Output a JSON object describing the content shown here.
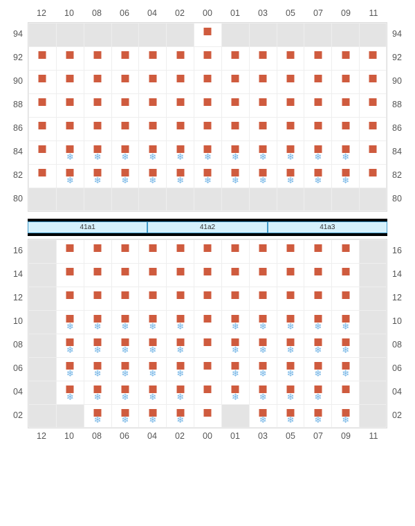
{
  "colors": {
    "seat": "#cf5b3e",
    "snow": "#72b4e6",
    "blank_cell": "#e4e4e4",
    "cell_border": "#eeeeee",
    "section_border": "#dddddd",
    "tray_bg": "#d6f1fc",
    "tray_border": "#3f99c9",
    "label_color": "#555555"
  },
  "columns": [
    "12",
    "10",
    "08",
    "06",
    "04",
    "02",
    "00",
    "01",
    "03",
    "05",
    "07",
    "09",
    "11"
  ],
  "trays": [
    "41a1",
    "41a2",
    "41a3"
  ],
  "upper": {
    "row_labels": [
      "94",
      "92",
      "90",
      "88",
      "86",
      "84",
      "82",
      "80"
    ],
    "rows": [
      [
        {
          "blank": true
        },
        {
          "blank": true
        },
        {
          "blank": true
        },
        {
          "blank": true
        },
        {
          "blank": true
        },
        {
          "blank": true
        },
        {
          "seat": true
        },
        {
          "blank": true
        },
        {
          "blank": true
        },
        {
          "blank": true
        },
        {
          "blank": true
        },
        {
          "blank": true
        },
        {
          "blank": true
        }
      ],
      [
        {
          "seat": true
        },
        {
          "seat": true
        },
        {
          "seat": true
        },
        {
          "seat": true
        },
        {
          "seat": true
        },
        {
          "seat": true
        },
        {
          "seat": true
        },
        {
          "seat": true
        },
        {
          "seat": true
        },
        {
          "seat": true
        },
        {
          "seat": true
        },
        {
          "seat": true
        },
        {
          "seat": true
        }
      ],
      [
        {
          "seat": true
        },
        {
          "seat": true
        },
        {
          "seat": true
        },
        {
          "seat": true
        },
        {
          "seat": true
        },
        {
          "seat": true
        },
        {
          "seat": true
        },
        {
          "seat": true
        },
        {
          "seat": true
        },
        {
          "seat": true
        },
        {
          "seat": true
        },
        {
          "seat": true
        },
        {
          "seat": true
        }
      ],
      [
        {
          "seat": true
        },
        {
          "seat": true
        },
        {
          "seat": true
        },
        {
          "seat": true
        },
        {
          "seat": true
        },
        {
          "seat": true
        },
        {
          "seat": true
        },
        {
          "seat": true
        },
        {
          "seat": true
        },
        {
          "seat": true
        },
        {
          "seat": true
        },
        {
          "seat": true
        },
        {
          "seat": true
        }
      ],
      [
        {
          "seat": true
        },
        {
          "seat": true
        },
        {
          "seat": true
        },
        {
          "seat": true
        },
        {
          "seat": true
        },
        {
          "seat": true
        },
        {
          "seat": true
        },
        {
          "seat": true
        },
        {
          "seat": true
        },
        {
          "seat": true
        },
        {
          "seat": true
        },
        {
          "seat": true
        },
        {
          "seat": true
        }
      ],
      [
        {
          "seat": true
        },
        {
          "seat": true,
          "snow": true
        },
        {
          "seat": true,
          "snow": true
        },
        {
          "seat": true,
          "snow": true
        },
        {
          "seat": true,
          "snow": true
        },
        {
          "seat": true,
          "snow": true
        },
        {
          "seat": true,
          "snow": true
        },
        {
          "seat": true,
          "snow": true
        },
        {
          "seat": true,
          "snow": true
        },
        {
          "seat": true,
          "snow": true
        },
        {
          "seat": true,
          "snow": true
        },
        {
          "seat": true,
          "snow": true
        },
        {
          "seat": true
        }
      ],
      [
        {
          "seat": true
        },
        {
          "seat": true,
          "snow": true
        },
        {
          "seat": true,
          "snow": true
        },
        {
          "seat": true,
          "snow": true
        },
        {
          "seat": true,
          "snow": true
        },
        {
          "seat": true,
          "snow": true
        },
        {
          "seat": true,
          "snow": true
        },
        {
          "seat": true,
          "snow": true
        },
        {
          "seat": true,
          "snow": true
        },
        {
          "seat": true,
          "snow": true
        },
        {
          "seat": true,
          "snow": true
        },
        {
          "seat": true,
          "snow": true
        },
        {
          "seat": true
        }
      ],
      [
        {
          "blank": true
        },
        {
          "blank": true
        },
        {
          "blank": true
        },
        {
          "blank": true
        },
        {
          "blank": true
        },
        {
          "blank": true
        },
        {
          "blank": true
        },
        {
          "blank": true
        },
        {
          "blank": true
        },
        {
          "blank": true
        },
        {
          "blank": true
        },
        {
          "blank": true
        },
        {
          "blank": true
        }
      ]
    ]
  },
  "lower": {
    "row_labels": [
      "16",
      "14",
      "12",
      "10",
      "08",
      "06",
      "04",
      "02"
    ],
    "rows": [
      [
        {
          "blank": true
        },
        {
          "seat": true
        },
        {
          "seat": true
        },
        {
          "seat": true
        },
        {
          "seat": true
        },
        {
          "seat": true
        },
        {
          "seat": true
        },
        {
          "seat": true
        },
        {
          "seat": true
        },
        {
          "seat": true
        },
        {
          "seat": true
        },
        {
          "seat": true
        },
        {
          "blank": true
        }
      ],
      [
        {
          "blank": true
        },
        {
          "seat": true
        },
        {
          "seat": true
        },
        {
          "seat": true
        },
        {
          "seat": true
        },
        {
          "seat": true
        },
        {
          "seat": true
        },
        {
          "seat": true
        },
        {
          "seat": true
        },
        {
          "seat": true
        },
        {
          "seat": true
        },
        {
          "seat": true
        },
        {
          "blank": true
        }
      ],
      [
        {
          "blank": true
        },
        {
          "seat": true
        },
        {
          "seat": true
        },
        {
          "seat": true
        },
        {
          "seat": true
        },
        {
          "seat": true
        },
        {
          "seat": true
        },
        {
          "seat": true
        },
        {
          "seat": true
        },
        {
          "seat": true
        },
        {
          "seat": true
        },
        {
          "seat": true
        },
        {
          "blank": true
        }
      ],
      [
        {
          "blank": true
        },
        {
          "seat": true,
          "snow": true
        },
        {
          "seat": true,
          "snow": true
        },
        {
          "seat": true,
          "snow": true
        },
        {
          "seat": true,
          "snow": true
        },
        {
          "seat": true,
          "snow": true
        },
        {
          "seat": true
        },
        {
          "seat": true,
          "snow": true
        },
        {
          "seat": true,
          "snow": true
        },
        {
          "seat": true,
          "snow": true
        },
        {
          "seat": true,
          "snow": true
        },
        {
          "seat": true,
          "snow": true
        },
        {
          "blank": true
        }
      ],
      [
        {
          "blank": true
        },
        {
          "seat": true,
          "snow": true
        },
        {
          "seat": true,
          "snow": true
        },
        {
          "seat": true,
          "snow": true
        },
        {
          "seat": true,
          "snow": true
        },
        {
          "seat": true,
          "snow": true
        },
        {
          "seat": true
        },
        {
          "seat": true,
          "snow": true
        },
        {
          "seat": true,
          "snow": true
        },
        {
          "seat": true,
          "snow": true
        },
        {
          "seat": true,
          "snow": true
        },
        {
          "seat": true,
          "snow": true
        },
        {
          "blank": true
        }
      ],
      [
        {
          "blank": true
        },
        {
          "seat": true,
          "snow": true
        },
        {
          "seat": true,
          "snow": true
        },
        {
          "seat": true,
          "snow": true
        },
        {
          "seat": true,
          "snow": true
        },
        {
          "seat": true,
          "snow": true
        },
        {
          "seat": true
        },
        {
          "seat": true,
          "snow": true
        },
        {
          "seat": true,
          "snow": true
        },
        {
          "seat": true,
          "snow": true
        },
        {
          "seat": true,
          "snow": true
        },
        {
          "seat": true,
          "snow": true
        },
        {
          "blank": true
        }
      ],
      [
        {
          "blank": true
        },
        {
          "seat": true,
          "snow": true
        },
        {
          "seat": true,
          "snow": true
        },
        {
          "seat": true,
          "snow": true
        },
        {
          "seat": true,
          "snow": true
        },
        {
          "seat": true,
          "snow": true
        },
        {
          "seat": true
        },
        {
          "seat": true,
          "snow": true
        },
        {
          "seat": true,
          "snow": true
        },
        {
          "seat": true,
          "snow": true
        },
        {
          "seat": true,
          "snow": true
        },
        {
          "seat": true
        },
        {
          "blank": true
        }
      ],
      [
        {
          "blank": true
        },
        {
          "blank": true
        },
        {
          "seat": true,
          "snow": true
        },
        {
          "seat": true,
          "snow": true
        },
        {
          "seat": true,
          "snow": true
        },
        {
          "seat": true,
          "snow": true
        },
        {
          "seat": true
        },
        {
          "blank": true
        },
        {
          "seat": true,
          "snow": true
        },
        {
          "seat": true,
          "snow": true
        },
        {
          "seat": true,
          "snow": true
        },
        {
          "seat": true,
          "snow": true
        },
        {
          "blank": true
        }
      ]
    ]
  }
}
